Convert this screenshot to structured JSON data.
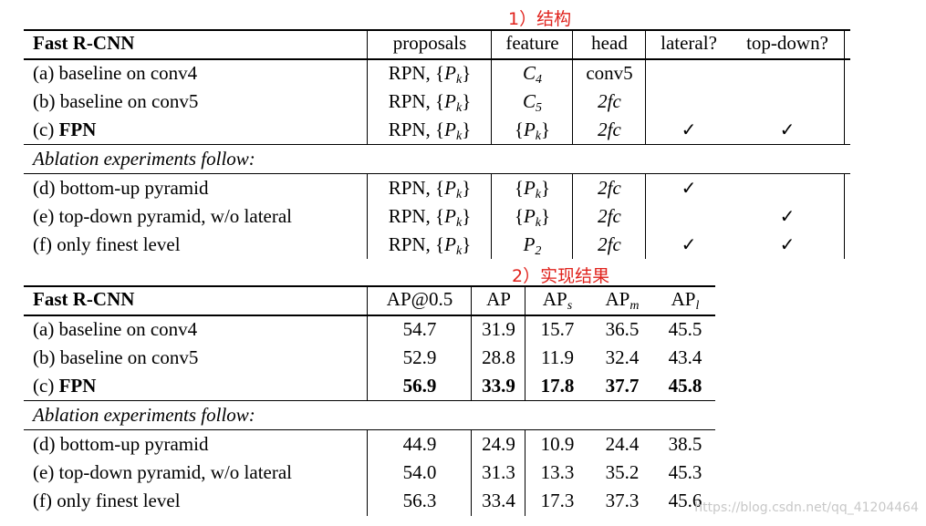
{
  "annotations": {
    "structure": "1）结构",
    "results": "2）实现结果"
  },
  "table1": {
    "headers": [
      "Fast R-CNN",
      "proposals",
      "feature",
      "head",
      "lateral?",
      "top-down?"
    ],
    "rows": [
      {
        "method": "(a) baseline on conv4",
        "method_prefix": "",
        "method_bold": "",
        "proposals": "RPN, {P_k}",
        "feature": "C_4",
        "head": "conv5",
        "lateral": "",
        "topdown": ""
      },
      {
        "method": "(b) baseline on conv5",
        "method_prefix": "",
        "method_bold": "",
        "proposals": "RPN, {P_k}",
        "feature": "C_5",
        "head": "2fc",
        "lateral": "",
        "topdown": ""
      },
      {
        "method": "",
        "method_prefix": "(c) ",
        "method_bold": "FPN",
        "proposals": "RPN, {P_k}",
        "feature": "{P_k}",
        "head": "2fc",
        "lateral": "✓",
        "topdown": "✓"
      }
    ],
    "ablation_label": "Ablation experiments follow:",
    "ablation_rows": [
      {
        "method": "(d) bottom-up pyramid",
        "proposals": "RPN, {P_k}",
        "feature": "{P_k}",
        "head": "2fc",
        "lateral": "✓",
        "topdown": ""
      },
      {
        "method": "(e) top-down pyramid, w/o lateral",
        "proposals": "RPN, {P_k}",
        "feature": "{P_k}",
        "head": "2fc",
        "lateral": "",
        "topdown": "✓"
      },
      {
        "method": "(f) only finest level",
        "proposals": "RPN, {P_k}",
        "feature": "P_2",
        "head": "2fc",
        "lateral": "✓",
        "topdown": "✓"
      }
    ]
  },
  "table2": {
    "headers": [
      "Fast R-CNN",
      "AP@0.5",
      "AP",
      "AP_s",
      "AP_m",
      "AP_l"
    ],
    "rows": [
      {
        "method": "(a) baseline on conv4",
        "values": [
          "54.7",
          "31.9",
          "15.7",
          "36.5",
          "45.5"
        ]
      },
      {
        "method": "(b) baseline on conv5",
        "values": [
          "52.9",
          "28.8",
          "11.9",
          "32.4",
          "43.4"
        ]
      },
      {
        "method_prefix": "(c) ",
        "method_bold": "FPN",
        "values": [
          "56.9",
          "33.9",
          "17.8",
          "37.7",
          "45.8"
        ],
        "bold": true
      }
    ],
    "ablation_label": "Ablation experiments follow:",
    "ablation_rows": [
      {
        "method": "(d) bottom-up pyramid",
        "values": [
          "44.9",
          "24.9",
          "10.9",
          "24.4",
          "38.5"
        ]
      },
      {
        "method": "(e) top-down pyramid, w/o lateral",
        "values": [
          "54.0",
          "31.3",
          "13.3",
          "35.2",
          "45.3"
        ]
      },
      {
        "method": "(f) only finest level",
        "values": [
          "56.3",
          "33.4",
          "17.3",
          "37.3",
          "45.6"
        ]
      }
    ]
  },
  "watermark": "https://blog.csdn.net/qq_41204464"
}
